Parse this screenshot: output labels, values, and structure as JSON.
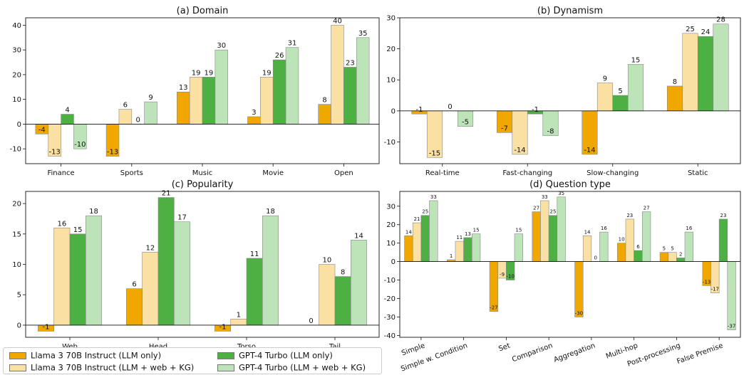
{
  "chart_data": [
    {
      "type": "bar",
      "title": "(a) Domain",
      "categories": [
        "Finance",
        "Sports",
        "Music",
        "Movie",
        "Open"
      ],
      "ylim": [
        -16,
        43
      ],
      "yticks": [
        -10,
        0,
        10,
        20,
        30,
        40
      ],
      "series": [
        {
          "name": "Llama 3 70B Instruct (LLM only)",
          "values": [
            -4,
            -13,
            13,
            3,
            8
          ]
        },
        {
          "name": "Llama 3 70B Instruct (LLM + web + KG)",
          "values": [
            -13,
            6,
            19,
            19,
            40
          ]
        },
        {
          "name": "GPT-4 Turbo (LLM only)",
          "values": [
            4,
            0,
            19,
            26,
            23
          ]
        },
        {
          "name": "GPT-4 Turbo (LLM + web + KG)",
          "values": [
            -10,
            9,
            30,
            31,
            35
          ]
        }
      ],
      "grid": false
    },
    {
      "type": "bar",
      "title": "(b) Dynamism",
      "categories": [
        "Real-time",
        "Fast-changing",
        "Slow-changing",
        "Static"
      ],
      "ylim": [
        -17,
        30
      ],
      "yticks": [
        -10,
        0,
        10,
        20,
        30
      ],
      "series": [
        {
          "name": "Llama 3 70B Instruct (LLM only)",
          "values": [
            -1,
            -7,
            -14,
            8
          ]
        },
        {
          "name": "Llama 3 70B Instruct (LLM + web + KG)",
          "values": [
            -15,
            -14,
            9,
            25
          ]
        },
        {
          "name": "GPT-4 Turbo (LLM only)",
          "values": [
            0,
            -1,
            5,
            24
          ]
        },
        {
          "name": "GPT-4 Turbo (LLM + web + KG)",
          "values": [
            -5,
            -8,
            15,
            28
          ]
        }
      ],
      "grid": false
    },
    {
      "type": "bar",
      "title": "(c) Popularity",
      "categories": [
        "Web",
        "Head",
        "Torso",
        "Tail"
      ],
      "ylim": [
        -2,
        22
      ],
      "yticks": [
        0,
        5,
        10,
        15,
        20
      ],
      "series": [
        {
          "name": "Llama 3 70B Instruct (LLM only)",
          "values": [
            -1,
            6,
            -1,
            0
          ]
        },
        {
          "name": "Llama 3 70B Instruct (LLM + web + KG)",
          "values": [
            16,
            12,
            1,
            10
          ]
        },
        {
          "name": "GPT-4 Turbo (LLM only)",
          "values": [
            15,
            21,
            11,
            8
          ]
        },
        {
          "name": "GPT-4 Turbo (LLM + web + KG)",
          "values": [
            18,
            17,
            18,
            14
          ]
        }
      ],
      "grid": false
    },
    {
      "type": "bar",
      "title": "(d) Question type",
      "categories": [
        "Simple",
        "Simple w. Condition",
        "Set",
        "Comparison",
        "Aggregation",
        "Multi-hop",
        "Post-processing",
        "False Premise"
      ],
      "ylim": [
        -41,
        38
      ],
      "yticks": [
        -40,
        -30,
        -20,
        -10,
        0,
        10,
        20,
        30
      ],
      "rotate_labels": true,
      "series": [
        {
          "name": "Llama 3 70B Instruct (LLM only)",
          "values": [
            14,
            1,
            -27,
            27,
            -30,
            10,
            5,
            -13
          ]
        },
        {
          "name": "Llama 3 70B Instruct (LLM + web + KG)",
          "values": [
            21,
            11,
            -9,
            33,
            14,
            23,
            5,
            -17
          ]
        },
        {
          "name": "GPT-4 Turbo (LLM only)",
          "values": [
            25,
            13,
            -10,
            25,
            0,
            6,
            2,
            23
          ]
        },
        {
          "name": "GPT-4 Turbo (LLM + web + KG)",
          "values": [
            33,
            15,
            15,
            35,
            16,
            27,
            16,
            -37
          ]
        }
      ],
      "grid": false
    }
  ],
  "colors": [
    "#f0a800",
    "#fae0a2",
    "#4cb043",
    "#bde3b8"
  ],
  "legend": {
    "items": [
      "Llama 3 70B Instruct (LLM only)",
      "Llama 3 70B Instruct (LLM + web + KG)",
      "GPT-4 Turbo (LLM only)",
      "GPT-4 Turbo (LLM + web + KG)"
    ]
  }
}
